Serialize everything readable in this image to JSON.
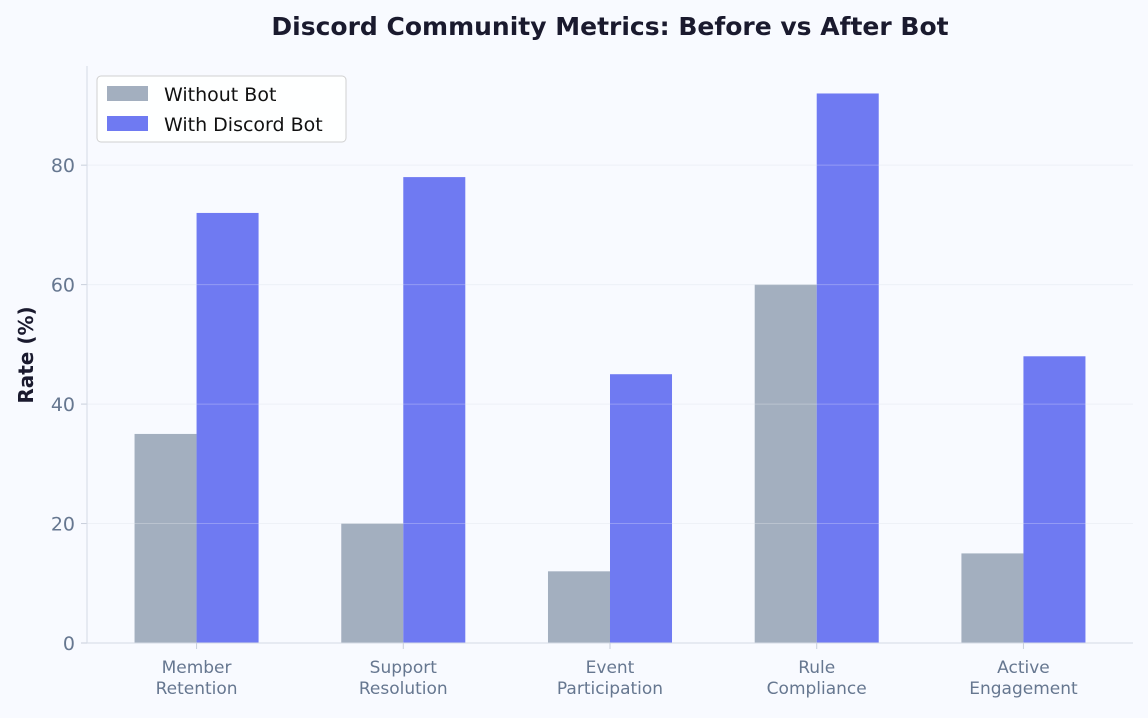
{
  "chart_data": {
    "type": "bar",
    "title": "Discord Community Metrics: Before vs After Bot",
    "xlabel": "",
    "ylabel": "Rate (%)",
    "categories": [
      [
        "Member",
        "Retention"
      ],
      [
        "Support",
        "Resolution"
      ],
      [
        "Event",
        "Participation"
      ],
      [
        "Rule",
        "Compliance"
      ],
      [
        "Active",
        "Engagement"
      ]
    ],
    "series": [
      {
        "name": "Without Bot",
        "values": [
          35,
          20,
          12,
          60,
          15
        ],
        "color": "#a3afbf"
      },
      {
        "name": "With Discord Bot",
        "values": [
          72,
          78,
          45,
          92,
          48
        ],
        "color": "#6f7af2"
      }
    ],
    "ylim": [
      0,
      96.6
    ],
    "yticks": [
      0,
      20,
      40,
      60,
      80
    ],
    "grid": true,
    "legend": "top-left",
    "background": "#f8faff"
  }
}
